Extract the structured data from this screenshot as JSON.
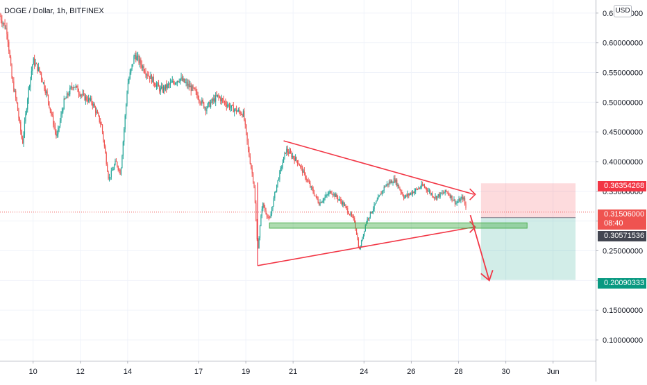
{
  "header": {
    "symbol_title": "DOGE / Dollar, 1h, BITFINEX",
    "currency_label": "USD"
  },
  "price_badges": {
    "target_upper": "0.36354268",
    "last_price": "0.31506000",
    "countdown": "08:40",
    "entry_price": "0.30571536",
    "target_lower": "0.20090333"
  },
  "colors": {
    "up": "#26a69a",
    "down": "#ef5350",
    "upper_badge": "#f23645",
    "last_badge": "#ef5350",
    "entry_badge": "#434651",
    "lower_badge": "#089981",
    "drawing": "#f23645",
    "support_zone": "#4caf50",
    "stop_zone": "rgba(242,54,69,0.18)",
    "profit_zone": "rgba(8,153,129,0.18)"
  },
  "chart_data": {
    "type": "candlestick",
    "title": "DOGE / Dollar, 1h, BITFINEX",
    "x_tick_labels": [
      "10",
      "12",
      "14",
      "17",
      "19",
      "21",
      "24",
      "26",
      "28",
      "30",
      "Jun"
    ],
    "x_tick_day": [
      10,
      12,
      14,
      17,
      19,
      21,
      24,
      26,
      28,
      30,
      32
    ],
    "x_range_day": [
      8.6,
      33.8
    ],
    "y_tick_labels": [
      "0.10000000",
      "0.15000000",
      "0.20000000",
      "0.25000000",
      "0.30000000",
      "0.35000000",
      "0.40000000",
      "0.45000000",
      "0.50000000",
      "0.55000000",
      "0.60000000",
      "0.65000000"
    ],
    "y_ticks": [
      0.1,
      0.15,
      0.2,
      0.25,
      0.3,
      0.35,
      0.4,
      0.45,
      0.5,
      0.55,
      0.6,
      0.65
    ],
    "y_range": [
      0.065,
      0.672
    ],
    "grid": true,
    "price_path": [
      {
        "day": 8.6,
        "price": 0.645
      },
      {
        "day": 8.9,
        "price": 0.62
      },
      {
        "day": 9.1,
        "price": 0.54
      },
      {
        "day": 9.3,
        "price": 0.5
      },
      {
        "day": 9.55,
        "price": 0.43
      },
      {
        "day": 9.8,
        "price": 0.52
      },
      {
        "day": 10.0,
        "price": 0.57
      },
      {
        "day": 10.3,
        "price": 0.55
      },
      {
        "day": 10.6,
        "price": 0.51
      },
      {
        "day": 11.0,
        "price": 0.44
      },
      {
        "day": 11.3,
        "price": 0.5
      },
      {
        "day": 11.7,
        "price": 0.53
      },
      {
        "day": 12.1,
        "price": 0.51
      },
      {
        "day": 12.5,
        "price": 0.5
      },
      {
        "day": 12.9,
        "price": 0.46
      },
      {
        "day": 13.2,
        "price": 0.37
      },
      {
        "day": 13.5,
        "price": 0.4
      },
      {
        "day": 13.7,
        "price": 0.38
      },
      {
        "day": 14.0,
        "price": 0.53
      },
      {
        "day": 14.3,
        "price": 0.58
      },
      {
        "day": 14.8,
        "price": 0.55
      },
      {
        "day": 15.4,
        "price": 0.52
      },
      {
        "day": 16.2,
        "price": 0.54
      },
      {
        "day": 16.8,
        "price": 0.52
      },
      {
        "day": 17.3,
        "price": 0.49
      },
      {
        "day": 17.8,
        "price": 0.51
      },
      {
        "day": 18.4,
        "price": 0.49
      },
      {
        "day": 18.9,
        "price": 0.48
      },
      {
        "day": 19.1,
        "price": 0.42
      },
      {
        "day": 19.35,
        "price": 0.36
      },
      {
        "day": 19.5,
        "price": 0.25
      },
      {
        "day": 19.7,
        "price": 0.33
      },
      {
        "day": 20.0,
        "price": 0.3
      },
      {
        "day": 20.3,
        "price": 0.36
      },
      {
        "day": 20.7,
        "price": 0.42
      },
      {
        "day": 21.2,
        "price": 0.4
      },
      {
        "day": 21.7,
        "price": 0.36
      },
      {
        "day": 22.1,
        "price": 0.33
      },
      {
        "day": 22.6,
        "price": 0.35
      },
      {
        "day": 23.1,
        "price": 0.33
      },
      {
        "day": 23.6,
        "price": 0.3
      },
      {
        "day": 23.8,
        "price": 0.25
      },
      {
        "day": 24.1,
        "price": 0.3
      },
      {
        "day": 24.5,
        "price": 0.33
      },
      {
        "day": 24.9,
        "price": 0.36
      },
      {
        "day": 25.3,
        "price": 0.37
      },
      {
        "day": 25.7,
        "price": 0.34
      },
      {
        "day": 26.1,
        "price": 0.35
      },
      {
        "day": 26.5,
        "price": 0.36
      },
      {
        "day": 27.0,
        "price": 0.34
      },
      {
        "day": 27.5,
        "price": 0.35
      },
      {
        "day": 27.9,
        "price": 0.33
      },
      {
        "day": 28.2,
        "price": 0.34
      },
      {
        "day": 28.35,
        "price": 0.315
      }
    ],
    "drawings": {
      "triangle_upper_line": [
        {
          "day": 20.6,
          "price": 0.435
        },
        {
          "day": 28.65,
          "price": 0.345
        }
      ],
      "triangle_lower_line": [
        {
          "day": 19.5,
          "price": 0.225
        },
        {
          "day": 28.65,
          "price": 0.29
        }
      ],
      "support_zone": {
        "day_from": 20.0,
        "day_to": 30.9,
        "price_low": 0.288,
        "price_high": 0.297
      },
      "breakdown_arrow": [
        {
          "day": 28.5,
          "price": 0.31
        },
        {
          "day": 29.3,
          "price": 0.2
        }
      ],
      "position": {
        "day_from": 28.95,
        "day_to": 32.95,
        "entry": 0.30571536,
        "stop": 0.36354268,
        "target": 0.20090333
      }
    },
    "last_price": 0.31506
  }
}
